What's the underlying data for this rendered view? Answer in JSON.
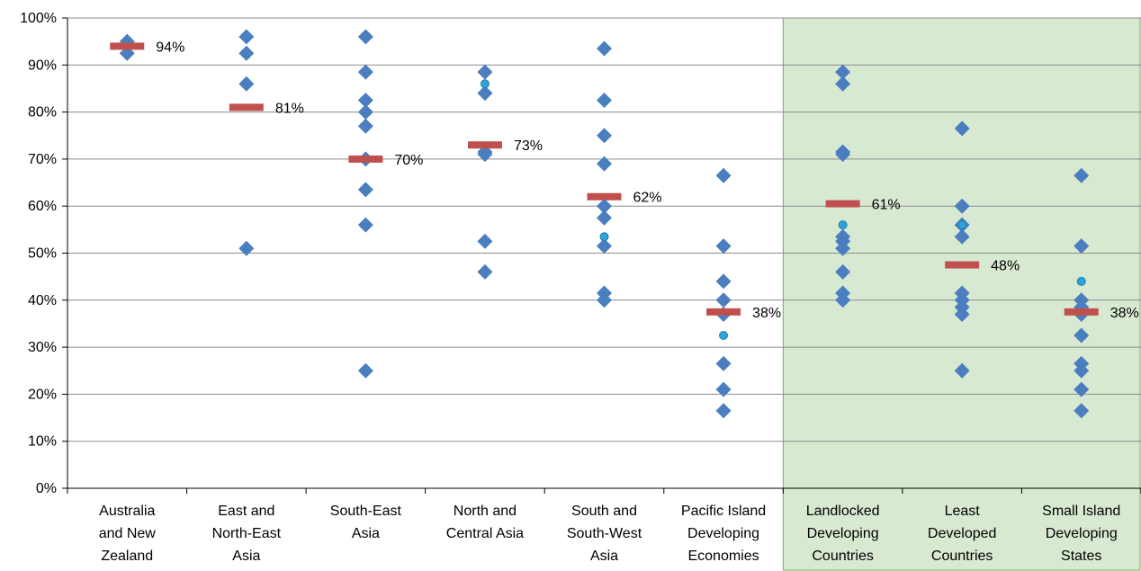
{
  "chart_data": {
    "type": "scatter",
    "title": "",
    "xlabel": "",
    "ylabel": "",
    "ylim": [
      0,
      100
    ],
    "y_ticks": [
      "0%",
      "10%",
      "20%",
      "30%",
      "40%",
      "50%",
      "60%",
      "70%",
      "80%",
      "90%",
      "100%"
    ],
    "grid": true,
    "legend": "none",
    "colors": {
      "diamond": "#4a7ebf",
      "circle": "#2ea3d8",
      "median": "#c0504d",
      "highlight_bg": "#d8e9d2",
      "highlight_border": "#6fb25c"
    },
    "highlighted_categories": [
      "Landlocked Developing Countries",
      "Least Developed Countries",
      "Small Island Developing States"
    ],
    "categories": [
      {
        "label": [
          "Australia",
          "and New",
          "Zealand"
        ],
        "median": 94,
        "median_label": "94%",
        "points": [
          95,
          92.5
        ],
        "circles": []
      },
      {
        "label": [
          "East and",
          "North-East",
          "Asia"
        ],
        "median": 81,
        "median_label": "81%",
        "points": [
          96,
          92.5,
          86,
          51
        ],
        "circles": []
      },
      {
        "label": [
          "South-East",
          "Asia"
        ],
        "median": 70,
        "median_label": "70%",
        "points": [
          96,
          88.5,
          82.5,
          80,
          77,
          70,
          63.5,
          56,
          25
        ],
        "circles": []
      },
      {
        "label": [
          "North and",
          "Central Asia"
        ],
        "median": 73,
        "median_label": "73%",
        "points": [
          88.5,
          84,
          71.5,
          71,
          52.5,
          46
        ],
        "circles": [
          86
        ]
      },
      {
        "label": [
          "South and",
          "South-West",
          "Asia"
        ],
        "median": 62,
        "median_label": "62%",
        "points": [
          93.5,
          82.5,
          75,
          69,
          60,
          57.5,
          51.5,
          41.5,
          40
        ],
        "circles": [
          53.5
        ]
      },
      {
        "label": [
          "Pacific Island",
          "Developing",
          "Economies"
        ],
        "median": 37.5,
        "median_label": "38%",
        "points": [
          66.5,
          51.5,
          44,
          40,
          37,
          26.5,
          21,
          16.5
        ],
        "circles": [
          32.5
        ]
      },
      {
        "label": [
          "Landlocked",
          "Developing",
          "Countries"
        ],
        "median": 60.5,
        "median_label": "61%",
        "points": [
          88.5,
          86,
          71.5,
          71,
          53.5,
          52.5,
          51,
          46,
          41.5,
          40
        ],
        "circles": [
          56
        ]
      },
      {
        "label": [
          "Least",
          "Developed",
          "Countries"
        ],
        "median": 47.5,
        "median_label": "48%",
        "points": [
          76.5,
          60,
          56,
          53.5,
          41.5,
          40,
          38.5,
          37,
          25
        ],
        "circles": [
          56
        ]
      },
      {
        "label": [
          "Small Island",
          "Developing",
          "States"
        ],
        "median": 37.5,
        "median_label": "38%",
        "points": [
          66.5,
          51.5,
          40,
          38.5,
          37,
          32.5,
          26.5,
          25,
          21,
          16.5
        ],
        "circles": [
          44
        ]
      }
    ]
  }
}
